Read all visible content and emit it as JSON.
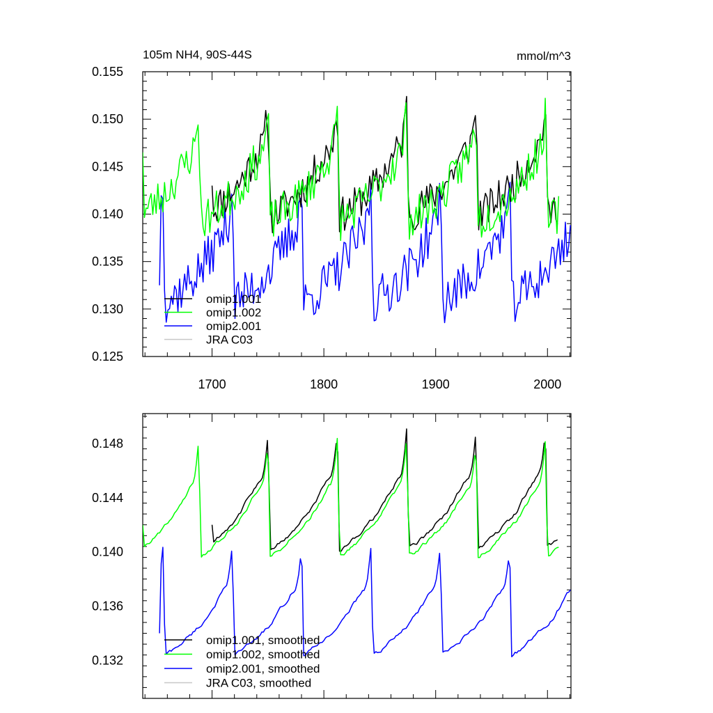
{
  "chart_data": [
    {
      "type": "line",
      "title": "105m NH4, 90S-44S",
      "units": "mmol/m^3",
      "xlim": [
        1638,
        2021
      ],
      "ylim": [
        0.125,
        0.155
      ],
      "x_ticks": [
        1700,
        1800,
        1900,
        2000
      ],
      "x_tick_labels": [
        "1700",
        "1800",
        "1900",
        "2000"
      ],
      "y_ticks": [
        0.125,
        0.13,
        0.135,
        0.14,
        0.145,
        0.15,
        0.155
      ],
      "y_tick_labels": [
        "0.125",
        "0.130",
        "0.135",
        "0.140",
        "0.145",
        "0.150",
        "0.155"
      ],
      "legend_position": "bottom-left",
      "series": [
        {
          "name": "omip1.001",
          "color": "#000000",
          "x_start": 1700,
          "x_end": 2010,
          "step": 1.5,
          "cycle_start": 1690,
          "base": 0.1375,
          "amp": 0.0142,
          "noise": 0.0019,
          "trend": 0.0004,
          "first": 0.143,
          "floor": 0.1355,
          "ceil": 0.1524
        },
        {
          "name": "omip1.002",
          "color": "#00ff00",
          "x_start": 1638,
          "x_end": 2010,
          "step": 1.5,
          "cycle_start": 1628,
          "base": 0.1372,
          "amp": 0.0138,
          "noise": 0.0021,
          "trend": 0.0,
          "first": 0.1465,
          "floor": 0.1355,
          "ceil": 0.1522
        },
        {
          "name": "omip2.001",
          "color": "#0000ff",
          "x_start": 1653,
          "x_end": 2021,
          "step": 1.5,
          "cycle_start": 1720,
          "base": 0.1285,
          "amp": 0.015,
          "noise": 0.0024,
          "trend": 0.0,
          "first": 0.1325,
          "floor": 0.1272,
          "ceil": 0.1445
        },
        {
          "name": "JRA C03",
          "color": "#c8c8c8"
        }
      ]
    },
    {
      "type": "line",
      "title": "",
      "xlim": [
        1638,
        2021
      ],
      "ylim": [
        0.1292,
        0.1502
      ],
      "x_ticks": [
        1700,
        1800,
        1900,
        2000
      ],
      "x_tick_labels": [],
      "y_ticks": [
        0.132,
        0.136,
        0.14,
        0.144,
        0.148
      ],
      "y_tick_labels": [
        "0.132",
        "0.136",
        "0.140",
        "0.144",
        "0.148"
      ],
      "legend_position": "bottom-left",
      "series": [
        {
          "name": "omip1.001, smoothed",
          "color": "#000000",
          "x_start": 1700,
          "x_end": 2010,
          "step": 1.5,
          "cycle_start": 1690,
          "base": 0.1385,
          "amp": 0.0105,
          "noise": 0.0004,
          "trend": 0.0003,
          "first": 0.142,
          "floor": 0.1378,
          "ceil": 0.1491
        },
        {
          "name": "omip1.002, smoothed",
          "color": "#00ff00",
          "x_start": 1638,
          "x_end": 2010,
          "step": 1.5,
          "cycle_start": 1628,
          "base": 0.1382,
          "amp": 0.0102,
          "noise": 0.0004,
          "trend": 0.0,
          "first": 0.142,
          "floor": 0.1372,
          "ceil": 0.1491
        },
        {
          "name": "omip2.001, smoothed",
          "color": "#0000ff",
          "x_start": 1653,
          "x_end": 2021,
          "step": 1.5,
          "cycle_start": 1720,
          "base": 0.131,
          "amp": 0.0095,
          "noise": 0.0004,
          "trend": 0.0,
          "first": 0.134,
          "floor": 0.1305,
          "ceil": 0.1405
        },
        {
          "name": "JRA C03, smoothed",
          "color": "#c8c8c8"
        }
      ]
    }
  ]
}
